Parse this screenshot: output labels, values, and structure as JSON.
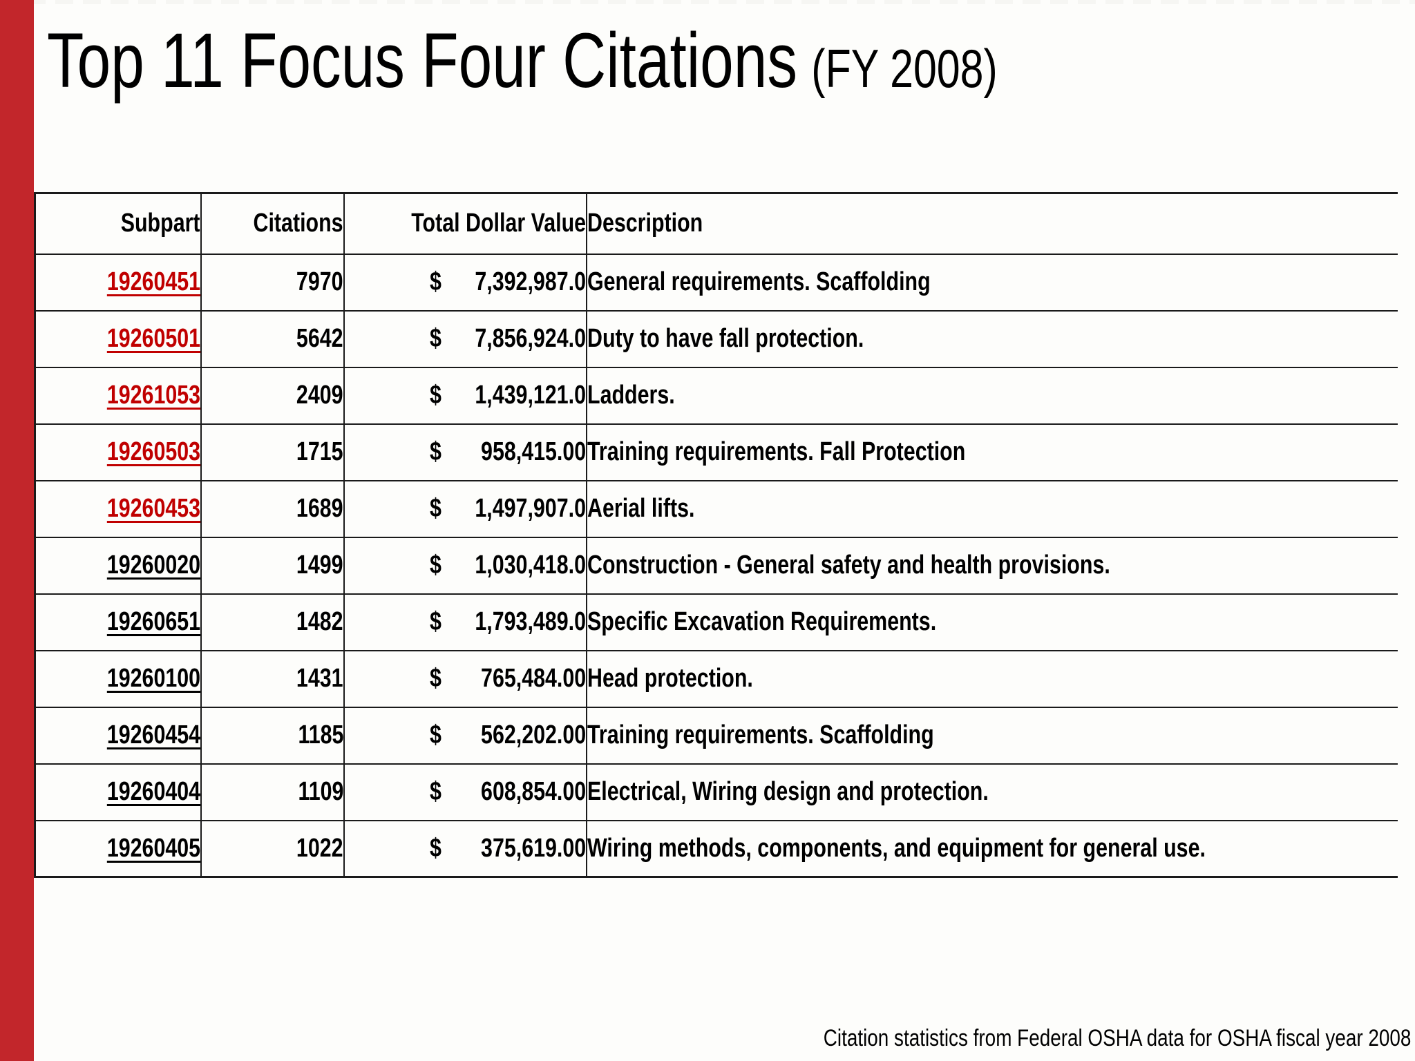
{
  "page": {
    "title": "Top 11 Focus Four Citations",
    "title_suffix": "(FY 2008)",
    "footer_note": "Citation statistics from Federal OSHA data for OSHA fiscal year 2008",
    "accent_bar_color": "#C2262B",
    "link_red_color": "#C00000",
    "background_color": "#FDFDFB"
  },
  "table": {
    "columns": [
      "Subpart",
      "Citations",
      "Total Dollar Value",
      "Description"
    ],
    "currency_symbol": "$",
    "rows": [
      {
        "subpart": "19260451",
        "citations": "7970",
        "amount": "7,392,987.00",
        "description": "General requirements. Scaffolding",
        "link_color": "red"
      },
      {
        "subpart": "19260501",
        "citations": "5642",
        "amount": "7,856,924.00",
        "description": "Duty to have fall protection.",
        "link_color": "red"
      },
      {
        "subpart": "19261053",
        "citations": "2409",
        "amount": "1,439,121.00",
        "description": "Ladders.",
        "link_color": "red"
      },
      {
        "subpart": "19260503",
        "citations": "1715",
        "amount": "958,415.00",
        "description": "Training requirements. Fall Protection",
        "link_color": "red"
      },
      {
        "subpart": "19260453",
        "citations": "1689",
        "amount": "1,497,907.00",
        "description": "Aerial lifts.",
        "link_color": "red"
      },
      {
        "subpart": "19260020",
        "citations": "1499",
        "amount": "1,030,418.00",
        "description": "Construction - General safety and health provisions.",
        "link_color": "black"
      },
      {
        "subpart": "19260651",
        "citations": "1482",
        "amount": "1,793,489.00",
        "description": "Specific Excavation Requirements.",
        "link_color": "black"
      },
      {
        "subpart": "19260100",
        "citations": "1431",
        "amount": "765,484.00",
        "description": "Head protection.",
        "link_color": "black"
      },
      {
        "subpart": "19260454",
        "citations": "1185",
        "amount": "562,202.00",
        "description": "Training requirements. Scaffolding",
        "link_color": "black"
      },
      {
        "subpart": "19260404",
        "citations": "1109",
        "amount": "608,854.00",
        "description": "Electrical, Wiring design and protection.",
        "link_color": "black"
      },
      {
        "subpart": "19260405",
        "citations": "1022",
        "amount": "375,619.00",
        "description": "Wiring methods, components, and equipment for general use.",
        "link_color": "black"
      }
    ]
  }
}
